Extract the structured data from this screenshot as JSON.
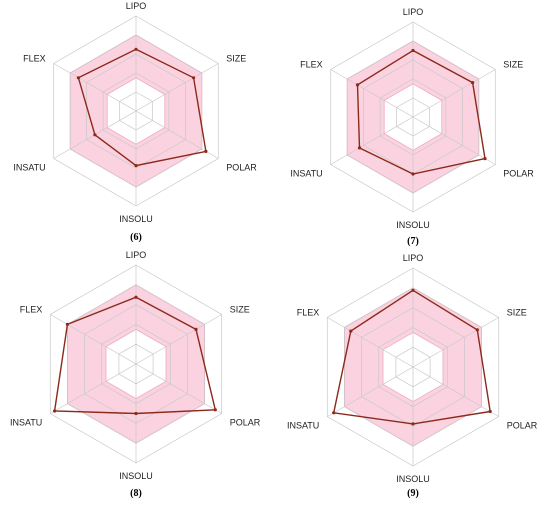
{
  "colors": {
    "grid": "#c8c8c8",
    "band_fill": "#fbd3e0",
    "band_stroke": "#f0a8c0",
    "line": "#8b2a1a"
  },
  "chart_data": [
    {
      "type": "radar",
      "panel_label": "(6)",
      "axes": [
        "LIPO",
        "SIZE",
        "POLAR",
        "INSOLU",
        "INSATU",
        "FLEX"
      ],
      "values": [
        0.3,
        0.4,
        0.7,
        0.15,
        0.0,
        0.4
      ],
      "rlim": [
        -1,
        1
      ],
      "optimal_range": [
        -0.3,
        0.6
      ]
    },
    {
      "type": "radar",
      "panel_label": "(7)",
      "axes": [
        "LIPO",
        "SIZE",
        "POLAR",
        "INSOLU",
        "INSATU",
        "FLEX"
      ],
      "values": [
        0.4,
        0.45,
        0.75,
        0.2,
        0.3,
        0.35
      ],
      "rlim": [
        -1,
        1
      ],
      "optimal_range": [
        -0.3,
        0.6
      ]
    },
    {
      "type": "radar",
      "panel_label": "(8)",
      "axes": [
        "LIPO",
        "SIZE",
        "POLAR",
        "INSOLU",
        "INSATU",
        "FLEX"
      ],
      "values": [
        0.35,
        0.4,
        0.85,
        0.0,
        0.9,
        0.6
      ],
      "rlim": [
        -1,
        1
      ],
      "optimal_range": [
        -0.3,
        0.6
      ]
    },
    {
      "type": "radar",
      "panel_label": "(9)",
      "axes": [
        "LIPO",
        "SIZE",
        "POLAR",
        "INSOLU",
        "INSATU",
        "FLEX"
      ],
      "values": [
        0.55,
        0.5,
        0.8,
        0.15,
        0.85,
        0.45
      ],
      "rlim": [
        -1,
        1
      ],
      "optimal_range": [
        -0.3,
        0.6
      ]
    }
  ]
}
